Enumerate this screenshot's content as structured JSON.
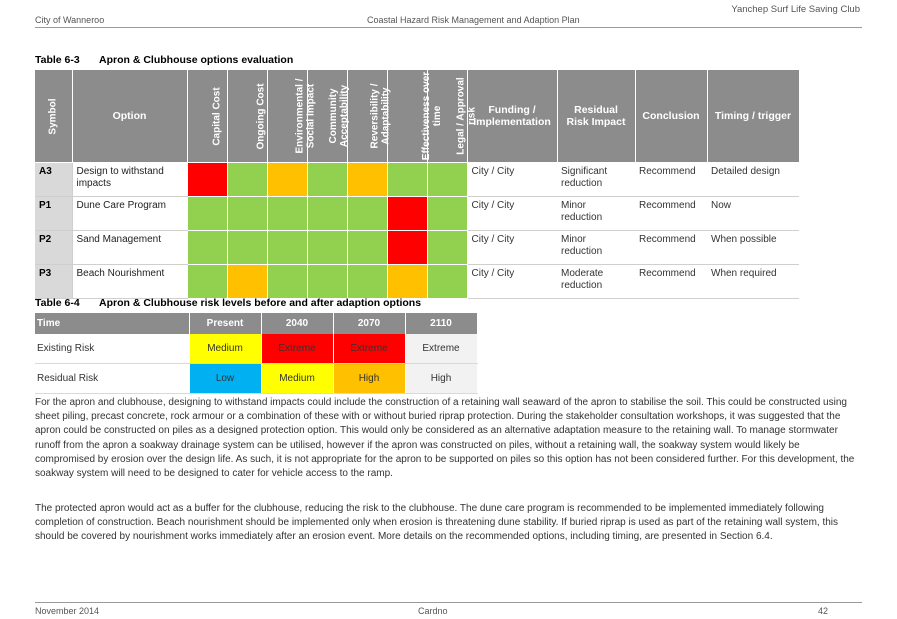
{
  "header": {
    "org_right": "Yanchep Surf Life Saving Club",
    "left": "City of Wanneroo",
    "center": "Coastal Hazard Risk Management and Adaption Plan"
  },
  "table63": {
    "caption_num": "Table 6-3",
    "caption_title": "Apron & Clubhouse options evaluation",
    "headers": {
      "symbol": "Symbol",
      "option": "Option",
      "capital_cost": "Capital Cost",
      "ongoing_cost": "Ongoing Cost",
      "env_social_1": "Environmental /",
      "env_social_2": "Social Impact",
      "community_1": "Community",
      "community_2": "Acceptability",
      "reversibility_1": "Reversibility /",
      "reversibility_2": "Adaptability",
      "effectiveness_1": "Effectiveness over",
      "effectiveness_2": "time",
      "legal_1": "Legal / Approval",
      "legal_2": "risk",
      "funding_1": "Funding /",
      "funding_2": "Implementation",
      "residual_1": "Residual",
      "residual_2": "Risk Impact",
      "conclusion": "Conclusion",
      "timing": "Timing / trigger"
    },
    "rows": [
      {
        "symbol": "A3",
        "option_1": "Design to withstand",
        "option_2": "impacts",
        "funding": "City / City",
        "residual_1": "Significant",
        "residual_2": "reduction",
        "conclusion": "Recommend",
        "timing": "Detailed design",
        "ratings": [
          "red",
          "green",
          "orange",
          "green",
          "orange",
          "green",
          "green"
        ]
      },
      {
        "symbol": "P1",
        "option_1": "Dune Care Program",
        "option_2": "",
        "funding": "City / City",
        "residual_1": "Minor",
        "residual_2": "reduction",
        "conclusion": "Recommend",
        "timing": "Now",
        "ratings": [
          "green",
          "green",
          "green",
          "green",
          "green",
          "red",
          "green"
        ]
      },
      {
        "symbol": "P2",
        "option_1": "Sand Management",
        "option_2": "",
        "funding": "City / City",
        "residual_1": "Minor",
        "residual_2": "reduction",
        "conclusion": "Recommend",
        "timing": "When possible",
        "ratings": [
          "green",
          "green",
          "green",
          "green",
          "green",
          "red",
          "green"
        ]
      },
      {
        "symbol": "P3",
        "option_1": "Beach Nourishment",
        "option_2": "",
        "funding": "City / City",
        "residual_1": "Moderate",
        "residual_2": "reduction",
        "conclusion": "Recommend",
        "timing": "When required",
        "ratings": [
          "green",
          "orange",
          "green",
          "green",
          "green",
          "orange",
          "green"
        ]
      }
    ],
    "colors": {
      "green": "#92d050",
      "red": "#ff0000",
      "orange": "#ffc000"
    }
  },
  "table64": {
    "caption_num": "Table 6-4",
    "caption_title": "Apron & Clubhouse risk levels before and after adaption options",
    "headers": [
      "Time",
      "Present",
      "2040",
      "2070",
      "2110"
    ],
    "rows": [
      {
        "label": "Existing Risk",
        "values": [
          "Medium",
          "Extreme",
          "Extreme",
          "Extreme"
        ]
      },
      {
        "label": "Residual Risk",
        "values": [
          "Low",
          "Medium",
          "High",
          "High"
        ]
      }
    ]
  },
  "body": {
    "para1": "For the apron and clubhouse, designing to withstand impacts could include the construction of a retaining wall seaward of the apron to stabilise the soil. This could be constructed using sheet piling, precast concrete, rock armour or a combination of these with or without buried riprap protection. During the stakeholder consultation workshops, it was suggested that the apron could be constructed on piles as a designed protection option. This would only be considered as an alternative adaptation measure to the retaining wall. To manage stormwater runoff from the apron a soakway drainage system can be utilised, however if the apron was constructed on piles, without a retaining wall, the soakway system would likely be compromised by erosion over the design life. As such, it is not appropriate for the apron to be supported on piles so this option has not been considered further. For this development, the soakway system will need to be designed to cater for vehicle access to the ramp.",
    "para2": "The protected apron would act as a buffer for the clubhouse, reducing the risk to the clubhouse. The dune care program is recommended to be implemented immediately following completion of construction. Beach nourishment should be implemented only when erosion is threatening dune stability. If buried riprap is used as part of the retaining wall system, this should be covered by nourishment works immediately after an erosion event. More details on the recommended options, including timing, are presented in Section 6.4."
  },
  "footer": {
    "date": "November 2014",
    "company": "Cardno",
    "page": "42"
  }
}
